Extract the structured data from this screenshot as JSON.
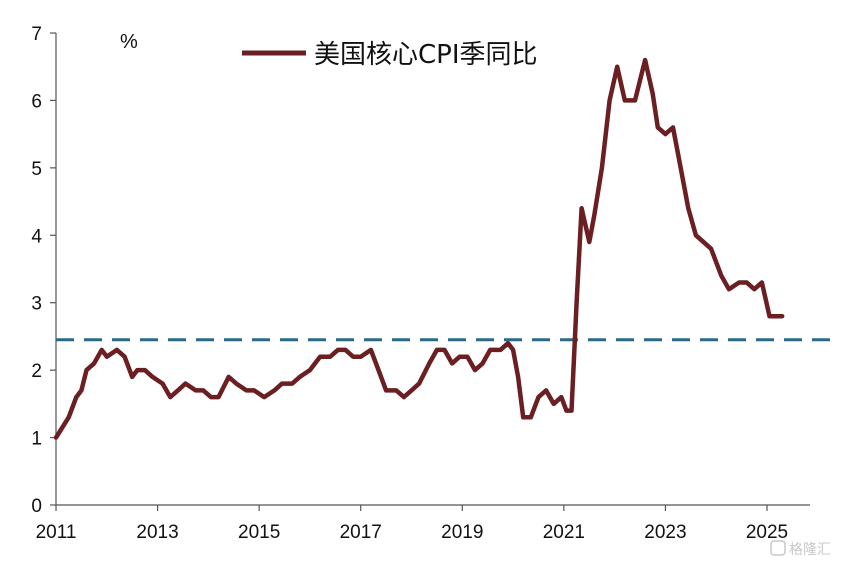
{
  "chart_data": {
    "type": "line",
    "unit": "%",
    "legend": "top-center",
    "grid": false,
    "ylim": [
      0,
      7
    ],
    "yticks": [
      0,
      1,
      2,
      3,
      4,
      5,
      6,
      7
    ],
    "xticks": [
      "2011",
      "2013",
      "2015",
      "2017",
      "2019",
      "2021",
      "2023",
      "2025"
    ],
    "xlim": [
      2011,
      2026
    ],
    "reference_line": {
      "value": 2.45,
      "style": "dashed",
      "color": "#2a6a86"
    },
    "series": [
      {
        "name": "美国核心CPI季同比",
        "color": "#6b1f22",
        "x": [
          2011.0,
          2011.25,
          2011.4,
          2011.5,
          2011.6,
          2011.75,
          2011.9,
          2012.0,
          2012.2,
          2012.35,
          2012.5,
          2012.6,
          2012.75,
          2012.9,
          2013.1,
          2013.25,
          2013.4,
          2013.55,
          2013.75,
          2013.9,
          2014.05,
          2014.2,
          2014.4,
          2014.55,
          2014.75,
          2014.9,
          2015.1,
          2015.3,
          2015.45,
          2015.65,
          2015.8,
          2016.0,
          2016.2,
          2016.4,
          2016.55,
          2016.7,
          2016.85,
          2017.0,
          2017.2,
          2017.35,
          2017.5,
          2017.7,
          2017.85,
          2018.0,
          2018.15,
          2018.35,
          2018.5,
          2018.65,
          2018.8,
          2018.95,
          2019.1,
          2019.25,
          2019.4,
          2019.55,
          2019.75,
          2019.9,
          2020.0,
          2020.1,
          2020.2,
          2020.35,
          2020.5,
          2020.65,
          2020.8,
          2020.95,
          2021.05,
          2021.15,
          2021.25,
          2021.35,
          2021.5,
          2021.6,
          2021.75,
          2021.9,
          2022.05,
          2022.2,
          2022.4,
          2022.6,
          2022.75,
          2022.85,
          2023.0,
          2023.15,
          2023.3,
          2023.45,
          2023.6,
          2023.75,
          2023.9,
          2024.1,
          2024.25,
          2024.45,
          2024.6,
          2024.75,
          2024.9,
          2025.05,
          2025.15,
          2025.3
        ],
        "values": [
          1.0,
          1.3,
          1.6,
          1.7,
          2.0,
          2.1,
          2.3,
          2.2,
          2.3,
          2.2,
          1.9,
          2.0,
          2.0,
          1.9,
          1.8,
          1.6,
          1.7,
          1.8,
          1.7,
          1.7,
          1.6,
          1.6,
          1.9,
          1.8,
          1.7,
          1.7,
          1.6,
          1.7,
          1.8,
          1.8,
          1.9,
          2.0,
          2.2,
          2.2,
          2.3,
          2.3,
          2.2,
          2.2,
          2.3,
          2.0,
          1.7,
          1.7,
          1.6,
          1.7,
          1.8,
          2.1,
          2.3,
          2.3,
          2.1,
          2.2,
          2.2,
          2.0,
          2.1,
          2.3,
          2.3,
          2.4,
          2.3,
          1.9,
          1.3,
          1.3,
          1.6,
          1.7,
          1.5,
          1.6,
          1.4,
          1.4,
          3.0,
          4.4,
          3.9,
          4.3,
          5.0,
          6.0,
          6.5,
          6.0,
          6.0,
          6.6,
          6.1,
          5.6,
          5.5,
          5.6,
          5.0,
          4.4,
          4.0,
          3.9,
          3.8,
          3.4,
          3.2,
          3.3,
          3.3,
          3.2,
          3.3,
          2.8,
          2.8,
          2.8
        ]
      }
    ]
  },
  "watermark": "格隆汇"
}
